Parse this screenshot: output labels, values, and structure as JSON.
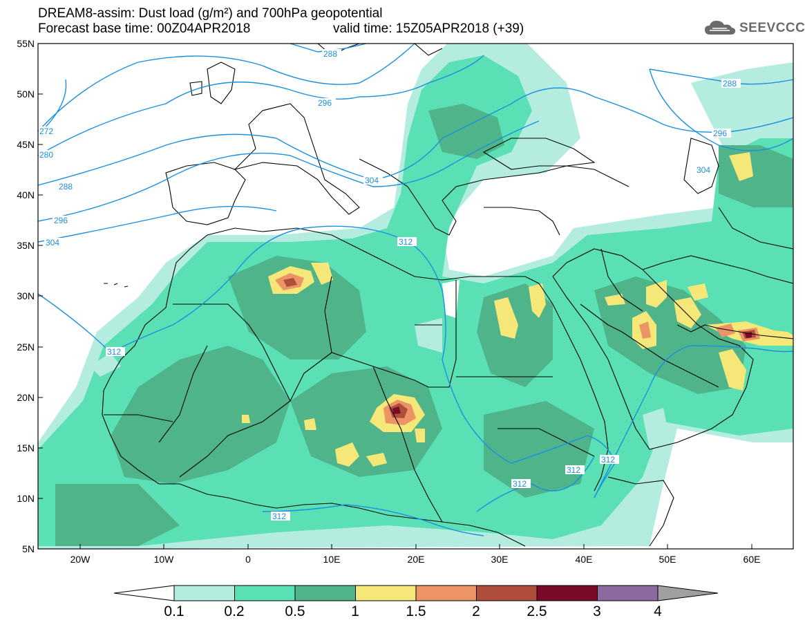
{
  "header": {
    "line1": "DREAM8-assim: Dust load (g/m²) and 700hPa geopotential",
    "line2_left": "Forecast base time: 00Z04APR2018",
    "line2_right": "valid time: 15Z05APR2018 (+39)",
    "logo_text": "SEEVCCC",
    "logo_icon": "cloud-icon"
  },
  "map": {
    "lat_range": [
      5,
      55
    ],
    "lon_range": [
      -25,
      65
    ],
    "lat_labels": [
      "55N",
      "50N",
      "45N",
      "40N",
      "35N",
      "30N",
      "25N",
      "20N",
      "15N",
      "10N",
      "5N"
    ],
    "lon_labels": [
      "20W",
      "10W",
      "0",
      "10E",
      "20E",
      "30E",
      "40E",
      "50E",
      "60E"
    ],
    "contour_labels": [
      "288",
      "296",
      "272",
      "280",
      "288",
      "296",
      "304",
      "312",
      "304",
      "312",
      "312",
      "312",
      "312",
      "312",
      "288",
      "296",
      "304"
    ],
    "contour_color": "#1a8fe0"
  },
  "colorbar": {
    "levels": [
      "0.1",
      "0.2",
      "0.5",
      "1",
      "1.5",
      "2",
      "2.5",
      "3",
      "4"
    ],
    "colors": [
      "#ffffff",
      "#b4ede0",
      "#5ae0b4",
      "#4fb48a",
      "#f5e878",
      "#ec9466",
      "#b04e3c",
      "#7a0a28",
      "#8c6aa0",
      "#a0a0a0"
    ]
  }
}
